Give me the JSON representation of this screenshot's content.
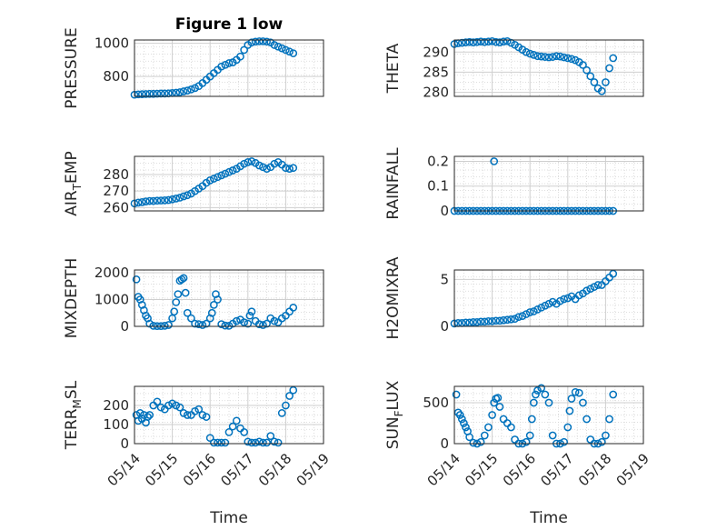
{
  "figure": {
    "title": "Figure 1 low",
    "marker_color": "#0072BD"
  },
  "chart_data": [
    {
      "type": "scatter",
      "ylabel": "PRESSURE",
      "title": "Figure 1 low",
      "xlabel": "",
      "xlim": [
        0,
        5
      ],
      "ylim": [
        680,
        1020
      ],
      "yticks": [
        800,
        1000
      ],
      "xtick_labels": [],
      "x": [
        0.0,
        0.1,
        0.2,
        0.3,
        0.4,
        0.5,
        0.6,
        0.7,
        0.8,
        0.9,
        1.0,
        1.1,
        1.2,
        1.3,
        1.4,
        1.5,
        1.6,
        1.7,
        1.8,
        1.9,
        2.0,
        2.1,
        2.2,
        2.3,
        2.4,
        2.5,
        2.6,
        2.7,
        2.8,
        2.9,
        3.0,
        3.1,
        3.2,
        3.3,
        3.4,
        3.5,
        3.6,
        3.7,
        3.8,
        3.9,
        4.0,
        4.1,
        4.2
      ],
      "y": [
        690,
        692,
        693,
        694,
        695,
        695,
        696,
        697,
        697,
        698,
        700,
        702,
        705,
        710,
        715,
        722,
        730,
        742,
        760,
        780,
        800,
        820,
        840,
        860,
        870,
        880,
        885,
        900,
        920,
        960,
        990,
        1005,
        1010,
        1012,
        1012,
        1010,
        1005,
        990,
        980,
        970,
        960,
        950,
        940
      ]
    },
    {
      "type": "scatter",
      "ylabel": "THETA",
      "xlabel": "",
      "xlim": [
        0,
        5
      ],
      "ylim": [
        279,
        293
      ],
      "yticks": [
        280,
        285,
        290
      ],
      "xtick_labels": [],
      "x": [
        0.0,
        0.1,
        0.2,
        0.3,
        0.4,
        0.5,
        0.6,
        0.7,
        0.8,
        0.9,
        1.0,
        1.1,
        1.2,
        1.3,
        1.4,
        1.5,
        1.6,
        1.7,
        1.8,
        1.9,
        2.0,
        2.1,
        2.2,
        2.3,
        2.4,
        2.5,
        2.6,
        2.7,
        2.8,
        2.9,
        3.0,
        3.1,
        3.2,
        3.3,
        3.4,
        3.5,
        3.6,
        3.7,
        3.8,
        3.9,
        4.0,
        4.1,
        4.2
      ],
      "y": [
        292,
        292.2,
        292.3,
        292.4,
        292.5,
        292.4,
        292.5,
        292.6,
        292.5,
        292.6,
        292.7,
        292.5,
        292.4,
        292.6,
        292.7,
        292.3,
        291.8,
        291.2,
        290.6,
        290.0,
        289.6,
        289.3,
        289.0,
        288.9,
        288.8,
        288.7,
        288.8,
        289.0,
        288.9,
        288.7,
        288.5,
        288.3,
        288.0,
        287.5,
        286.8,
        285.5,
        284.0,
        282.5,
        281.0,
        280.3,
        282.5,
        286.0,
        288.5
      ]
    },
    {
      "type": "scatter",
      "ylabel": "AIR_TEMP",
      "xlabel": "",
      "xlim": [
        0,
        5
      ],
      "ylim": [
        258,
        291
      ],
      "yticks": [
        260,
        270,
        280
      ],
      "xtick_labels": [],
      "x": [
        0.0,
        0.1,
        0.2,
        0.3,
        0.4,
        0.5,
        0.6,
        0.7,
        0.8,
        0.9,
        1.0,
        1.1,
        1.2,
        1.3,
        1.4,
        1.5,
        1.6,
        1.7,
        1.8,
        1.9,
        2.0,
        2.1,
        2.2,
        2.3,
        2.4,
        2.5,
        2.6,
        2.7,
        2.8,
        2.9,
        3.0,
        3.1,
        3.2,
        3.3,
        3.4,
        3.5,
        3.6,
        3.7,
        3.8,
        3.9,
        4.0,
        4.1,
        4.2
      ],
      "y": [
        262.5,
        263,
        263.3,
        263.7,
        264,
        264,
        264.2,
        264.3,
        264.4,
        264.6,
        265,
        265.5,
        266,
        266.8,
        267.5,
        268.5,
        270,
        271.5,
        273,
        275,
        276.5,
        277.5,
        278.5,
        279.5,
        280.5,
        281.5,
        282.5,
        283.5,
        285,
        286.5,
        287.5,
        288,
        287,
        285.5,
        284.5,
        283.5,
        284.5,
        286.5,
        287.5,
        286,
        284,
        283.5,
        284
      ]
    },
    {
      "type": "scatter",
      "ylabel": "RAINFALL",
      "xlabel": "",
      "xlim": [
        0,
        5
      ],
      "ylim": [
        0,
        0.22
      ],
      "yticks": [
        0,
        0.1,
        0.2
      ],
      "xtick_labels": [],
      "x": [
        0.0,
        0.1,
        0.2,
        0.3,
        0.4,
        0.5,
        0.6,
        0.7,
        0.8,
        0.9,
        1.0,
        1.1,
        1.2,
        1.3,
        1.4,
        1.5,
        1.6,
        1.7,
        1.8,
        1.9,
        2.0,
        2.1,
        2.2,
        2.3,
        2.4,
        2.5,
        2.6,
        2.7,
        2.8,
        2.9,
        3.0,
        3.1,
        3.2,
        3.3,
        3.4,
        3.5,
        3.6,
        3.7,
        3.8,
        3.9,
        4.0,
        4.1,
        4.2,
        1.05
      ],
      "y": [
        0,
        0,
        0,
        0,
        0,
        0,
        0,
        0,
        0,
        0,
        0,
        0,
        0,
        0,
        0,
        0,
        0,
        0,
        0,
        0,
        0,
        0,
        0,
        0,
        0,
        0,
        0,
        0,
        0,
        0,
        0,
        0,
        0,
        0,
        0,
        0,
        0,
        0,
        0,
        0,
        0,
        0,
        0,
        0.2
      ]
    },
    {
      "type": "scatter",
      "ylabel": "MIXDEPTH",
      "xlabel": "",
      "xlim": [
        0,
        5
      ],
      "ylim": [
        0,
        2100
      ],
      "yticks": [
        0,
        1000,
        2000
      ],
      "xtick_labels": [],
      "x": [
        0.05,
        0.1,
        0.15,
        0.2,
        0.25,
        0.3,
        0.35,
        0.4,
        0.5,
        0.6,
        0.7,
        0.8,
        0.9,
        1.0,
        1.05,
        1.1,
        1.15,
        1.2,
        1.25,
        1.3,
        1.35,
        1.4,
        1.5,
        1.6,
        1.7,
        1.8,
        1.9,
        2.0,
        2.05,
        2.1,
        2.15,
        2.2,
        2.3,
        2.4,
        2.5,
        2.6,
        2.7,
        2.8,
        2.9,
        3.0,
        3.05,
        3.1,
        3.2,
        3.3,
        3.4,
        3.5,
        3.6,
        3.7,
        3.8,
        3.9,
        4.0,
        4.1,
        4.2
      ],
      "y": [
        1750,
        1100,
        1000,
        800,
        600,
        400,
        300,
        100,
        20,
        10,
        10,
        20,
        50,
        300,
        550,
        900,
        1200,
        1700,
        1750,
        1800,
        1250,
        500,
        300,
        100,
        80,
        50,
        100,
        300,
        500,
        800,
        1200,
        1000,
        80,
        30,
        20,
        100,
        200,
        250,
        150,
        100,
        400,
        550,
        200,
        80,
        50,
        100,
        300,
        200,
        150,
        300,
        400,
        550,
        700
      ]
    },
    {
      "type": "scatter",
      "ylabel": "H2OMIXRA",
      "xlabel": "",
      "xlim": [
        0,
        5
      ],
      "ylim": [
        0,
        6
      ],
      "yticks": [
        0,
        5
      ],
      "xtick_labels": [],
      "x": [
        0.0,
        0.1,
        0.2,
        0.3,
        0.4,
        0.5,
        0.6,
        0.7,
        0.8,
        0.9,
        1.0,
        1.1,
        1.2,
        1.3,
        1.4,
        1.5,
        1.6,
        1.7,
        1.8,
        1.9,
        2.0,
        2.1,
        2.2,
        2.3,
        2.4,
        2.5,
        2.6,
        2.7,
        2.8,
        2.9,
        3.0,
        3.1,
        3.2,
        3.3,
        3.4,
        3.5,
        3.6,
        3.7,
        3.8,
        3.9,
        4.0,
        4.1,
        4.2
      ],
      "y": [
        0.3,
        0.35,
        0.35,
        0.4,
        0.4,
        0.45,
        0.45,
        0.5,
        0.5,
        0.55,
        0.55,
        0.6,
        0.6,
        0.65,
        0.7,
        0.75,
        0.8,
        1.0,
        1.1,
        1.3,
        1.5,
        1.6,
        1.8,
        2.0,
        2.2,
        2.4,
        2.6,
        2.4,
        2.7,
        2.9,
        3.0,
        3.2,
        2.9,
        3.3,
        3.5,
        3.8,
        4.0,
        4.2,
        4.4,
        4.4,
        4.8,
        5.2,
        5.6
      ]
    },
    {
      "type": "scatter",
      "ylabel": "TERR_MSL",
      "xlabel": "Time",
      "xlim": [
        0,
        5
      ],
      "ylim": [
        0,
        300
      ],
      "yticks": [
        0,
        100,
        200
      ],
      "xtick_labels": [
        "05/14",
        "05/15",
        "05/16",
        "05/17",
        "05/18",
        "05/19"
      ],
      "x": [
        0.05,
        0.1,
        0.15,
        0.2,
        0.25,
        0.3,
        0.35,
        0.4,
        0.5,
        0.6,
        0.7,
        0.8,
        0.9,
        1.0,
        1.1,
        1.2,
        1.3,
        1.4,
        1.5,
        1.6,
        1.7,
        1.8,
        1.9,
        2.0,
        2.1,
        2.2,
        2.3,
        2.4,
        2.5,
        2.6,
        2.7,
        2.8,
        2.9,
        3.0,
        3.1,
        3.2,
        3.3,
        3.4,
        3.5,
        3.6,
        3.7,
        3.8,
        3.9,
        4.0,
        4.1,
        4.2
      ],
      "y": [
        150,
        120,
        160,
        130,
        150,
        110,
        140,
        150,
        200,
        220,
        190,
        180,
        200,
        210,
        200,
        190,
        160,
        150,
        150,
        170,
        180,
        150,
        140,
        30,
        5,
        5,
        5,
        5,
        60,
        90,
        120,
        80,
        60,
        10,
        5,
        5,
        10,
        5,
        5,
        40,
        10,
        5,
        160,
        200,
        250,
        280
      ]
    },
    {
      "type": "scatter",
      "ylabel": "SUN_FLUX",
      "xlabel": "Time",
      "xlim": [
        0,
        5
      ],
      "ylim": [
        0,
        700
      ],
      "yticks": [
        0,
        500
      ],
      "xtick_labels": [
        "05/14",
        "05/15",
        "05/16",
        "05/17",
        "05/18",
        "05/19"
      ],
      "x": [
        0.05,
        0.1,
        0.15,
        0.2,
        0.25,
        0.3,
        0.35,
        0.4,
        0.5,
        0.6,
        0.7,
        0.8,
        0.9,
        1.0,
        1.05,
        1.1,
        1.15,
        1.2,
        1.3,
        1.4,
        1.5,
        1.6,
        1.7,
        1.8,
        1.9,
        2.0,
        2.05,
        2.1,
        2.15,
        2.2,
        2.3,
        2.4,
        2.5,
        2.6,
        2.7,
        2.8,
        2.9,
        3.0,
        3.05,
        3.1,
        3.2,
        3.3,
        3.4,
        3.5,
        3.6,
        3.7,
        3.8,
        3.9,
        4.0,
        4.1,
        4.2
      ],
      "y": [
        600,
        380,
        350,
        300,
        250,
        200,
        150,
        80,
        10,
        0,
        20,
        100,
        200,
        350,
        500,
        550,
        560,
        450,
        300,
        250,
        200,
        50,
        0,
        0,
        20,
        100,
        300,
        500,
        600,
        650,
        680,
        600,
        500,
        100,
        0,
        0,
        20,
        200,
        400,
        550,
        630,
        620,
        500,
        300,
        50,
        0,
        0,
        20,
        100,
        300,
        600
      ]
    }
  ]
}
